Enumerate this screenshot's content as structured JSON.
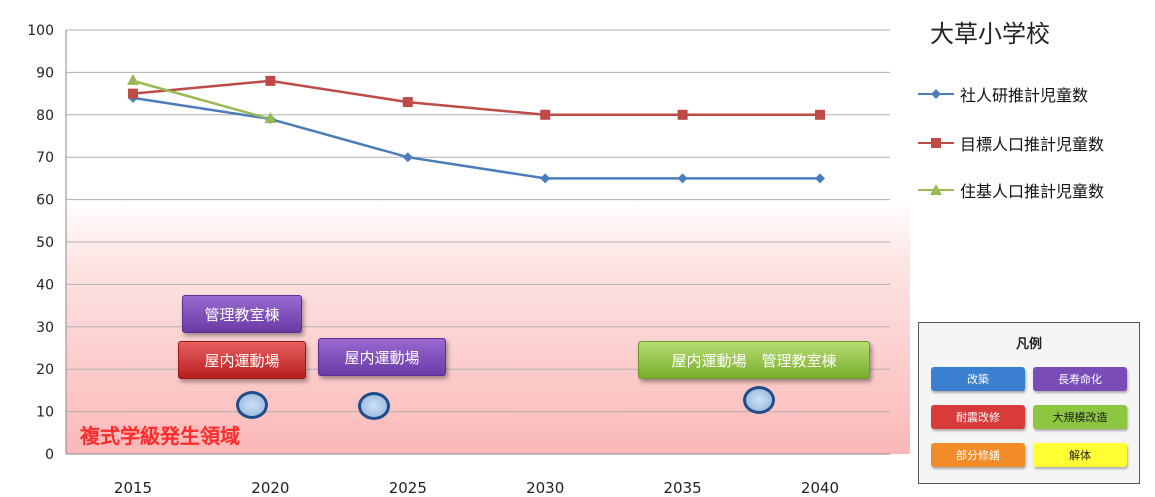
{
  "chart_data": {
    "type": "line",
    "title": "大草小学校",
    "x": [
      2015,
      2020,
      2025,
      2030,
      2035,
      2040
    ],
    "xticks": [
      "2015",
      "2020",
      "2025",
      "2030",
      "2035",
      "2040"
    ],
    "yticks": [
      "0",
      "10",
      "20",
      "30",
      "40",
      "50",
      "60",
      "70",
      "80",
      "90",
      "100"
    ],
    "ylim": [
      0,
      100
    ],
    "grid": true,
    "legend_position": "right",
    "series": [
      {
        "name": "社人研推計児童数",
        "color": "#4a7ebb",
        "marker": "diamond",
        "x": [
          2015,
          2020,
          2025,
          2030,
          2035,
          2040
        ],
        "values": [
          84,
          79,
          70,
          65,
          65,
          65
        ]
      },
      {
        "name": "目標人口推計児童数",
        "color": "#be4b48",
        "marker": "square",
        "x": [
          2015,
          2020,
          2025,
          2030,
          2035,
          2040
        ],
        "values": [
          85,
          88,
          83,
          80,
          80,
          80
        ]
      },
      {
        "name": "住基人口推計児童数",
        "color": "#98b954",
        "marker": "triangle",
        "x": [
          2015,
          2020
        ],
        "values": [
          88,
          79
        ]
      }
    ],
    "shaded_region": {
      "label": "複式学級発生領域",
      "y_range": [
        0,
        60
      ]
    },
    "annotations": [
      {
        "text": "管理教室棟",
        "category": "長寿命化",
        "color": "purple"
      },
      {
        "text": "屋内運動場",
        "category": "耐震改修",
        "color": "red"
      },
      {
        "text": "屋内運動場",
        "category": "長寿命化",
        "color": "purple"
      },
      {
        "text": "屋内運動場　管理教室棟",
        "category": "大規模改造",
        "color": "green"
      }
    ]
  },
  "legend_box": {
    "title": "凡例",
    "items": [
      {
        "label": "改築",
        "color": "#3a7fd0",
        "text_color": "#ffffff"
      },
      {
        "label": "長寿命化",
        "color": "#7a4cb8",
        "text_color": "#ffffff"
      },
      {
        "label": "耐震改修",
        "color": "#d93a3a",
        "text_color": "#ffffff"
      },
      {
        "label": "大規模改造",
        "color": "#8dc63f",
        "text_color": "#222222"
      },
      {
        "label": "部分修繕",
        "color": "#f28c28",
        "text_color": "#ffffff"
      },
      {
        "label": "解体",
        "color": "#ffff33",
        "text_color": "#222222"
      }
    ]
  }
}
